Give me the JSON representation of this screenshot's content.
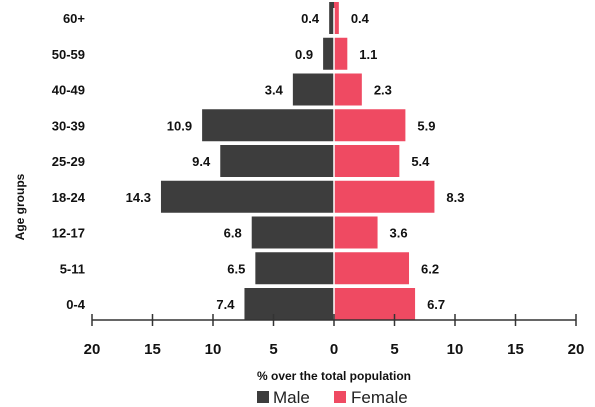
{
  "chart_data": {
    "type": "bar",
    "orientation": "horizontal",
    "layout": "population-pyramid",
    "title": "",
    "xlabel": "% over the total population",
    "ylabel": "Age groups",
    "categories": [
      "0-4",
      "5-11",
      "12-17",
      "18-24",
      "25-29",
      "30-39",
      "40-49",
      "50-59",
      "60+"
    ],
    "series": [
      {
        "name": "Male",
        "color": "#3d3d3d",
        "values": [
          7.4,
          6.5,
          6.8,
          14.3,
          9.4,
          10.9,
          3.4,
          0.9,
          0.4
        ],
        "labels": [
          "7.4",
          "6.5",
          "6.8",
          "14.3",
          "9.4",
          "10.9",
          "3.4",
          "0.9",
          "0.4"
        ]
      },
      {
        "name": "Female",
        "color": "#ef4a62",
        "values": [
          6.7,
          6.2,
          3.6,
          8.3,
          5.4,
          5.9,
          2.3,
          1.1,
          0.4
        ],
        "labels": [
          "6.7",
          "6.2",
          "3.6",
          "8.3",
          "5.4",
          "5.9",
          "2.3",
          "1.1",
          "0.4"
        ]
      }
    ],
    "xlim": [
      -20,
      20
    ],
    "x_ticks": [
      -20,
      -15,
      -10,
      -5,
      0,
      5,
      10,
      15,
      20
    ],
    "x_tick_labels": [
      "20",
      "15",
      "10",
      "5",
      "0",
      "5",
      "10",
      "15",
      "20"
    ],
    "grid": false,
    "legend": {
      "position": "bottom",
      "entries": [
        "Male",
        "Female"
      ]
    },
    "colors": {
      "axis": "#333333",
      "text": "#111111"
    }
  }
}
